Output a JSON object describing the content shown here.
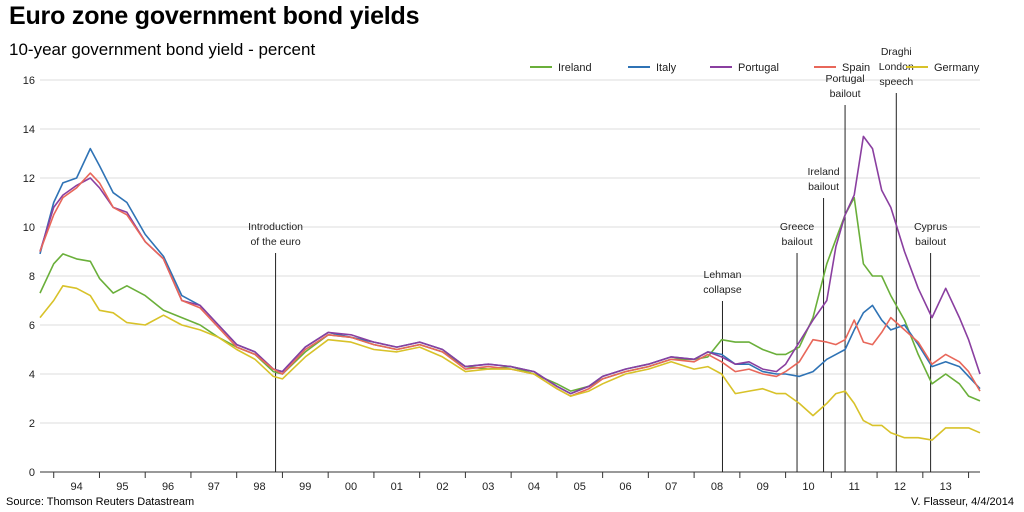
{
  "header": {
    "title": "Euro zone government bond yields",
    "subtitle": "10-year government bond yield - percent"
  },
  "footer": {
    "source": "Source: Thomson Reuters Datastream",
    "credit": "V. Flasseur, 4/4/2014"
  },
  "chart_data": {
    "type": "line",
    "title": "Euro zone government bond yields",
    "subtitle": "10-year government bond yield - percent",
    "xlabel": "",
    "ylabel": "",
    "xlim": [
      1993.7,
      2014.25
    ],
    "ylim": [
      0,
      16
    ],
    "y_ticks": [
      "0",
      "2",
      "4",
      "6",
      "8",
      "10",
      "12",
      "14",
      "16"
    ],
    "x_tick_labels": [
      "94",
      "95",
      "96",
      "97",
      "98",
      "99",
      "00",
      "01",
      "02",
      "03",
      "04",
      "05",
      "06",
      "07",
      "08",
      "09",
      "10",
      "11",
      "12",
      "13"
    ],
    "grid": true,
    "legend_position": "top-right",
    "series": [
      {
        "name": "Ireland",
        "color": "#6aaf3a",
        "x": [
          1993.7,
          1994.0,
          1994.2,
          1994.5,
          1994.8,
          1995.0,
          1995.3,
          1995.6,
          1996.0,
          1996.4,
          1996.8,
          1997.2,
          1997.6,
          1998.0,
          1998.4,
          1998.8,
          1999.0,
          1999.5,
          2000.0,
          2000.5,
          2001.0,
          2001.5,
          2002.0,
          2002.5,
          2003.0,
          2003.5,
          2004.0,
          2004.5,
          2005.0,
          2005.3,
          2005.7,
          2006.0,
          2006.5,
          2007.0,
          2007.5,
          2008.0,
          2008.3,
          2008.6,
          2008.9,
          2009.2,
          2009.5,
          2009.8,
          2010.0,
          2010.3,
          2010.6,
          2010.9,
          2011.1,
          2011.3,
          2011.5,
          2011.7,
          2011.9,
          2012.1,
          2012.3,
          2012.6,
          2012.9,
          2013.2,
          2013.5,
          2013.8,
          2014.0,
          2014.25
        ],
        "y": [
          7.3,
          8.5,
          8.9,
          8.7,
          8.6,
          7.9,
          7.3,
          7.6,
          7.2,
          6.6,
          6.3,
          6.0,
          5.5,
          5.1,
          4.8,
          4.1,
          4.0,
          4.9,
          5.6,
          5.5,
          5.2,
          5.0,
          5.2,
          4.9,
          4.3,
          4.2,
          4.3,
          4.0,
          3.6,
          3.3,
          3.5,
          3.8,
          4.1,
          4.3,
          4.6,
          4.6,
          4.7,
          5.4,
          5.3,
          5.3,
          5.0,
          4.8,
          4.8,
          5.1,
          6.3,
          8.5,
          9.5,
          10.5,
          11.2,
          8.5,
          8.0,
          8.0,
          7.2,
          6.2,
          4.8,
          3.6,
          4.0,
          3.6,
          3.1,
          2.9
        ]
      },
      {
        "name": "Italy",
        "color": "#2f73b5",
        "x": [
          1993.7,
          1994.0,
          1994.2,
          1994.5,
          1994.8,
          1995.0,
          1995.3,
          1995.6,
          1996.0,
          1996.4,
          1996.8,
          1997.2,
          1997.6,
          1998.0,
          1998.4,
          1998.8,
          1999.0,
          1999.5,
          2000.0,
          2000.5,
          2001.0,
          2001.5,
          2002.0,
          2002.5,
          2003.0,
          2003.5,
          2004.0,
          2004.5,
          2005.0,
          2005.3,
          2005.7,
          2006.0,
          2006.5,
          2007.0,
          2007.5,
          2008.0,
          2008.3,
          2008.6,
          2008.9,
          2009.2,
          2009.5,
          2009.8,
          2010.0,
          2010.3,
          2010.6,
          2010.9,
          2011.1,
          2011.3,
          2011.5,
          2011.7,
          2011.9,
          2012.1,
          2012.3,
          2012.6,
          2012.9,
          2013.2,
          2013.5,
          2013.8,
          2014.0,
          2014.25
        ],
        "y": [
          8.9,
          11.0,
          11.8,
          12.0,
          13.2,
          12.5,
          11.4,
          11.0,
          9.7,
          8.8,
          7.2,
          6.8,
          6.0,
          5.2,
          4.9,
          4.2,
          4.1,
          5.1,
          5.7,
          5.5,
          5.3,
          5.1,
          5.3,
          5.0,
          4.3,
          4.4,
          4.3,
          4.1,
          3.5,
          3.2,
          3.5,
          3.9,
          4.2,
          4.4,
          4.7,
          4.6,
          4.9,
          4.8,
          4.4,
          4.4,
          4.1,
          4.0,
          4.0,
          3.9,
          4.1,
          4.6,
          4.8,
          5.0,
          5.8,
          6.5,
          6.8,
          6.2,
          5.8,
          6.0,
          5.2,
          4.3,
          4.5,
          4.3,
          3.9,
          3.4
        ]
      },
      {
        "name": "Portugal",
        "color": "#8a3fa0",
        "x": [
          1993.7,
          1994.0,
          1994.2,
          1994.5,
          1994.8,
          1995.0,
          1995.3,
          1995.6,
          1996.0,
          1996.4,
          1996.8,
          1997.2,
          1997.6,
          1998.0,
          1998.4,
          1998.8,
          1999.0,
          1999.5,
          2000.0,
          2000.5,
          2001.0,
          2001.5,
          2002.0,
          2002.5,
          2003.0,
          2003.5,
          2004.0,
          2004.5,
          2005.0,
          2005.3,
          2005.7,
          2006.0,
          2006.5,
          2007.0,
          2007.5,
          2008.0,
          2008.3,
          2008.6,
          2008.9,
          2009.2,
          2009.5,
          2009.8,
          2010.0,
          2010.3,
          2010.6,
          2010.9,
          2011.1,
          2011.3,
          2011.5,
          2011.7,
          2011.9,
          2012.1,
          2012.3,
          2012.6,
          2012.9,
          2013.2,
          2013.5,
          2013.8,
          2014.0,
          2014.25
        ],
        "y": [
          9.0,
          10.8,
          11.3,
          11.7,
          12.0,
          11.6,
          10.8,
          10.6,
          9.4,
          8.7,
          7.0,
          6.8,
          6.0,
          5.2,
          4.9,
          4.2,
          4.1,
          5.1,
          5.7,
          5.6,
          5.3,
          5.1,
          5.3,
          5.0,
          4.3,
          4.4,
          4.3,
          4.1,
          3.5,
          3.2,
          3.5,
          3.9,
          4.2,
          4.4,
          4.7,
          4.6,
          4.9,
          4.7,
          4.4,
          4.5,
          4.2,
          4.1,
          4.4,
          5.3,
          6.2,
          7.0,
          9.2,
          10.5,
          11.3,
          13.7,
          13.2,
          11.5,
          10.8,
          9.0,
          7.5,
          6.3,
          7.5,
          6.3,
          5.4,
          4.0
        ]
      },
      {
        "name": "Spain",
        "color": "#e8675a",
        "x": [
          1993.7,
          1994.0,
          1994.2,
          1994.5,
          1994.8,
          1995.0,
          1995.3,
          1995.6,
          1996.0,
          1996.4,
          1996.8,
          1997.2,
          1997.6,
          1998.0,
          1998.4,
          1998.8,
          1999.0,
          1999.5,
          2000.0,
          2000.5,
          2001.0,
          2001.5,
          2002.0,
          2002.5,
          2003.0,
          2003.5,
          2004.0,
          2004.5,
          2005.0,
          2005.3,
          2005.7,
          2006.0,
          2006.5,
          2007.0,
          2007.5,
          2008.0,
          2008.3,
          2008.6,
          2008.9,
          2009.2,
          2009.5,
          2009.8,
          2010.0,
          2010.3,
          2010.6,
          2010.9,
          2011.1,
          2011.3,
          2011.5,
          2011.7,
          2011.9,
          2012.1,
          2012.3,
          2012.6,
          2012.9,
          2013.2,
          2013.5,
          2013.8,
          2014.0,
          2014.25
        ],
        "y": [
          9.0,
          10.5,
          11.2,
          11.6,
          12.2,
          11.8,
          10.8,
          10.5,
          9.4,
          8.7,
          7.0,
          6.7,
          5.9,
          5.1,
          4.8,
          4.2,
          4.0,
          5.0,
          5.6,
          5.5,
          5.2,
          5.0,
          5.2,
          4.9,
          4.2,
          4.3,
          4.2,
          4.0,
          3.4,
          3.1,
          3.4,
          3.8,
          4.1,
          4.3,
          4.6,
          4.5,
          4.8,
          4.5,
          4.1,
          4.2,
          4.0,
          3.9,
          4.1,
          4.5,
          5.4,
          5.3,
          5.2,
          5.4,
          6.2,
          5.3,
          5.2,
          5.7,
          6.3,
          5.8,
          5.3,
          4.4,
          4.8,
          4.5,
          4.1,
          3.3
        ]
      },
      {
        "name": "Germany",
        "color": "#d8c229",
        "x": [
          1993.7,
          1994.0,
          1994.2,
          1994.5,
          1994.8,
          1995.0,
          1995.3,
          1995.6,
          1996.0,
          1996.4,
          1996.8,
          1997.2,
          1997.6,
          1998.0,
          1998.4,
          1998.8,
          1999.0,
          1999.5,
          2000.0,
          2000.5,
          2001.0,
          2001.5,
          2002.0,
          2002.5,
          2003.0,
          2003.5,
          2004.0,
          2004.5,
          2005.0,
          2005.3,
          2005.7,
          2006.0,
          2006.5,
          2007.0,
          2007.5,
          2008.0,
          2008.3,
          2008.6,
          2008.9,
          2009.2,
          2009.5,
          2009.8,
          2010.0,
          2010.3,
          2010.6,
          2010.9,
          2011.1,
          2011.3,
          2011.5,
          2011.7,
          2011.9,
          2012.1,
          2012.3,
          2012.6,
          2012.9,
          2013.2,
          2013.5,
          2013.8,
          2014.0,
          2014.25
        ],
        "y": [
          6.3,
          7.0,
          7.6,
          7.5,
          7.2,
          6.6,
          6.5,
          6.1,
          6.0,
          6.4,
          6.0,
          5.8,
          5.5,
          5.0,
          4.6,
          3.9,
          3.8,
          4.7,
          5.4,
          5.3,
          5.0,
          4.9,
          5.1,
          4.7,
          4.1,
          4.2,
          4.2,
          4.0,
          3.4,
          3.1,
          3.3,
          3.6,
          4.0,
          4.2,
          4.5,
          4.2,
          4.3,
          4.0,
          3.2,
          3.3,
          3.4,
          3.2,
          3.2,
          2.8,
          2.3,
          2.8,
          3.2,
          3.3,
          2.8,
          2.1,
          1.9,
          1.9,
          1.6,
          1.4,
          1.4,
          1.3,
          1.8,
          1.8,
          1.8,
          1.6
        ]
      }
    ],
    "annotations": [
      {
        "x": 1998.85,
        "text_lines": [
          "Introduction",
          "of the euro"
        ]
      },
      {
        "x": 2008.62,
        "text_lines": [
          "Lehman",
          "collapse"
        ]
      },
      {
        "x": 2010.25,
        "text_lines": [
          "Greece",
          "bailout"
        ]
      },
      {
        "x": 2010.83,
        "text_lines": [
          "Ireland",
          "bailout"
        ]
      },
      {
        "x": 2011.3,
        "text_lines": [
          "Portugal",
          "bailout"
        ]
      },
      {
        "x": 2012.42,
        "text_lines": [
          "Draghi",
          "London",
          "speech"
        ]
      },
      {
        "x": 2013.17,
        "text_lines": [
          "Cyprus",
          "bailout"
        ]
      }
    ]
  }
}
